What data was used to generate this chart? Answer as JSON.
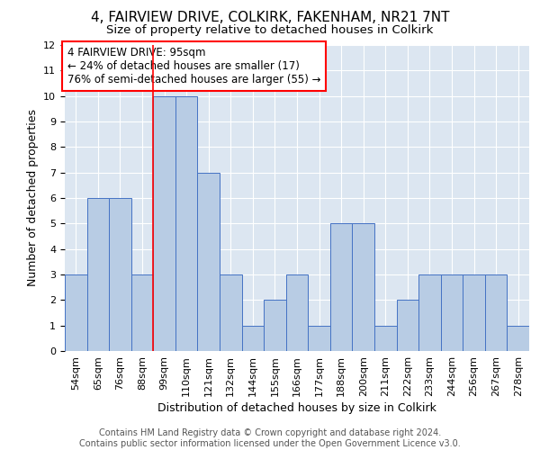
{
  "title1": "4, FAIRVIEW DRIVE, COLKIRK, FAKENHAM, NR21 7NT",
  "title2": "Size of property relative to detached houses in Colkirk",
  "xlabel": "Distribution of detached houses by size in Colkirk",
  "ylabel": "Number of detached properties",
  "categories": [
    "54sqm",
    "65sqm",
    "76sqm",
    "88sqm",
    "99sqm",
    "110sqm",
    "121sqm",
    "132sqm",
    "144sqm",
    "155sqm",
    "166sqm",
    "177sqm",
    "188sqm",
    "200sqm",
    "211sqm",
    "222sqm",
    "233sqm",
    "244sqm",
    "256sqm",
    "267sqm",
    "278sqm"
  ],
  "values": [
    3,
    6,
    6,
    3,
    10,
    10,
    7,
    3,
    1,
    2,
    3,
    1,
    5,
    5,
    1,
    2,
    3,
    3,
    3,
    3,
    1
  ],
  "bar_color": "#b8cce4",
  "bar_edge_color": "#4472c4",
  "bg_color": "#dce6f1",
  "redline_x": 3.5,
  "annotation_text": "4 FAIRVIEW DRIVE: 95sqm\n← 24% of detached houses are smaller (17)\n76% of semi-detached houses are larger (55) →",
  "ylim": [
    0,
    12
  ],
  "yticks": [
    0,
    1,
    2,
    3,
    4,
    5,
    6,
    7,
    8,
    9,
    10,
    11,
    12
  ],
  "footer": "Contains HM Land Registry data © Crown copyright and database right 2024.\nContains public sector information licensed under the Open Government Licence v3.0.",
  "title1_fontsize": 11,
  "title2_fontsize": 9.5,
  "xlabel_fontsize": 9,
  "ylabel_fontsize": 9,
  "tick_fontsize": 8,
  "annotation_fontsize": 8.5,
  "footer_fontsize": 7
}
